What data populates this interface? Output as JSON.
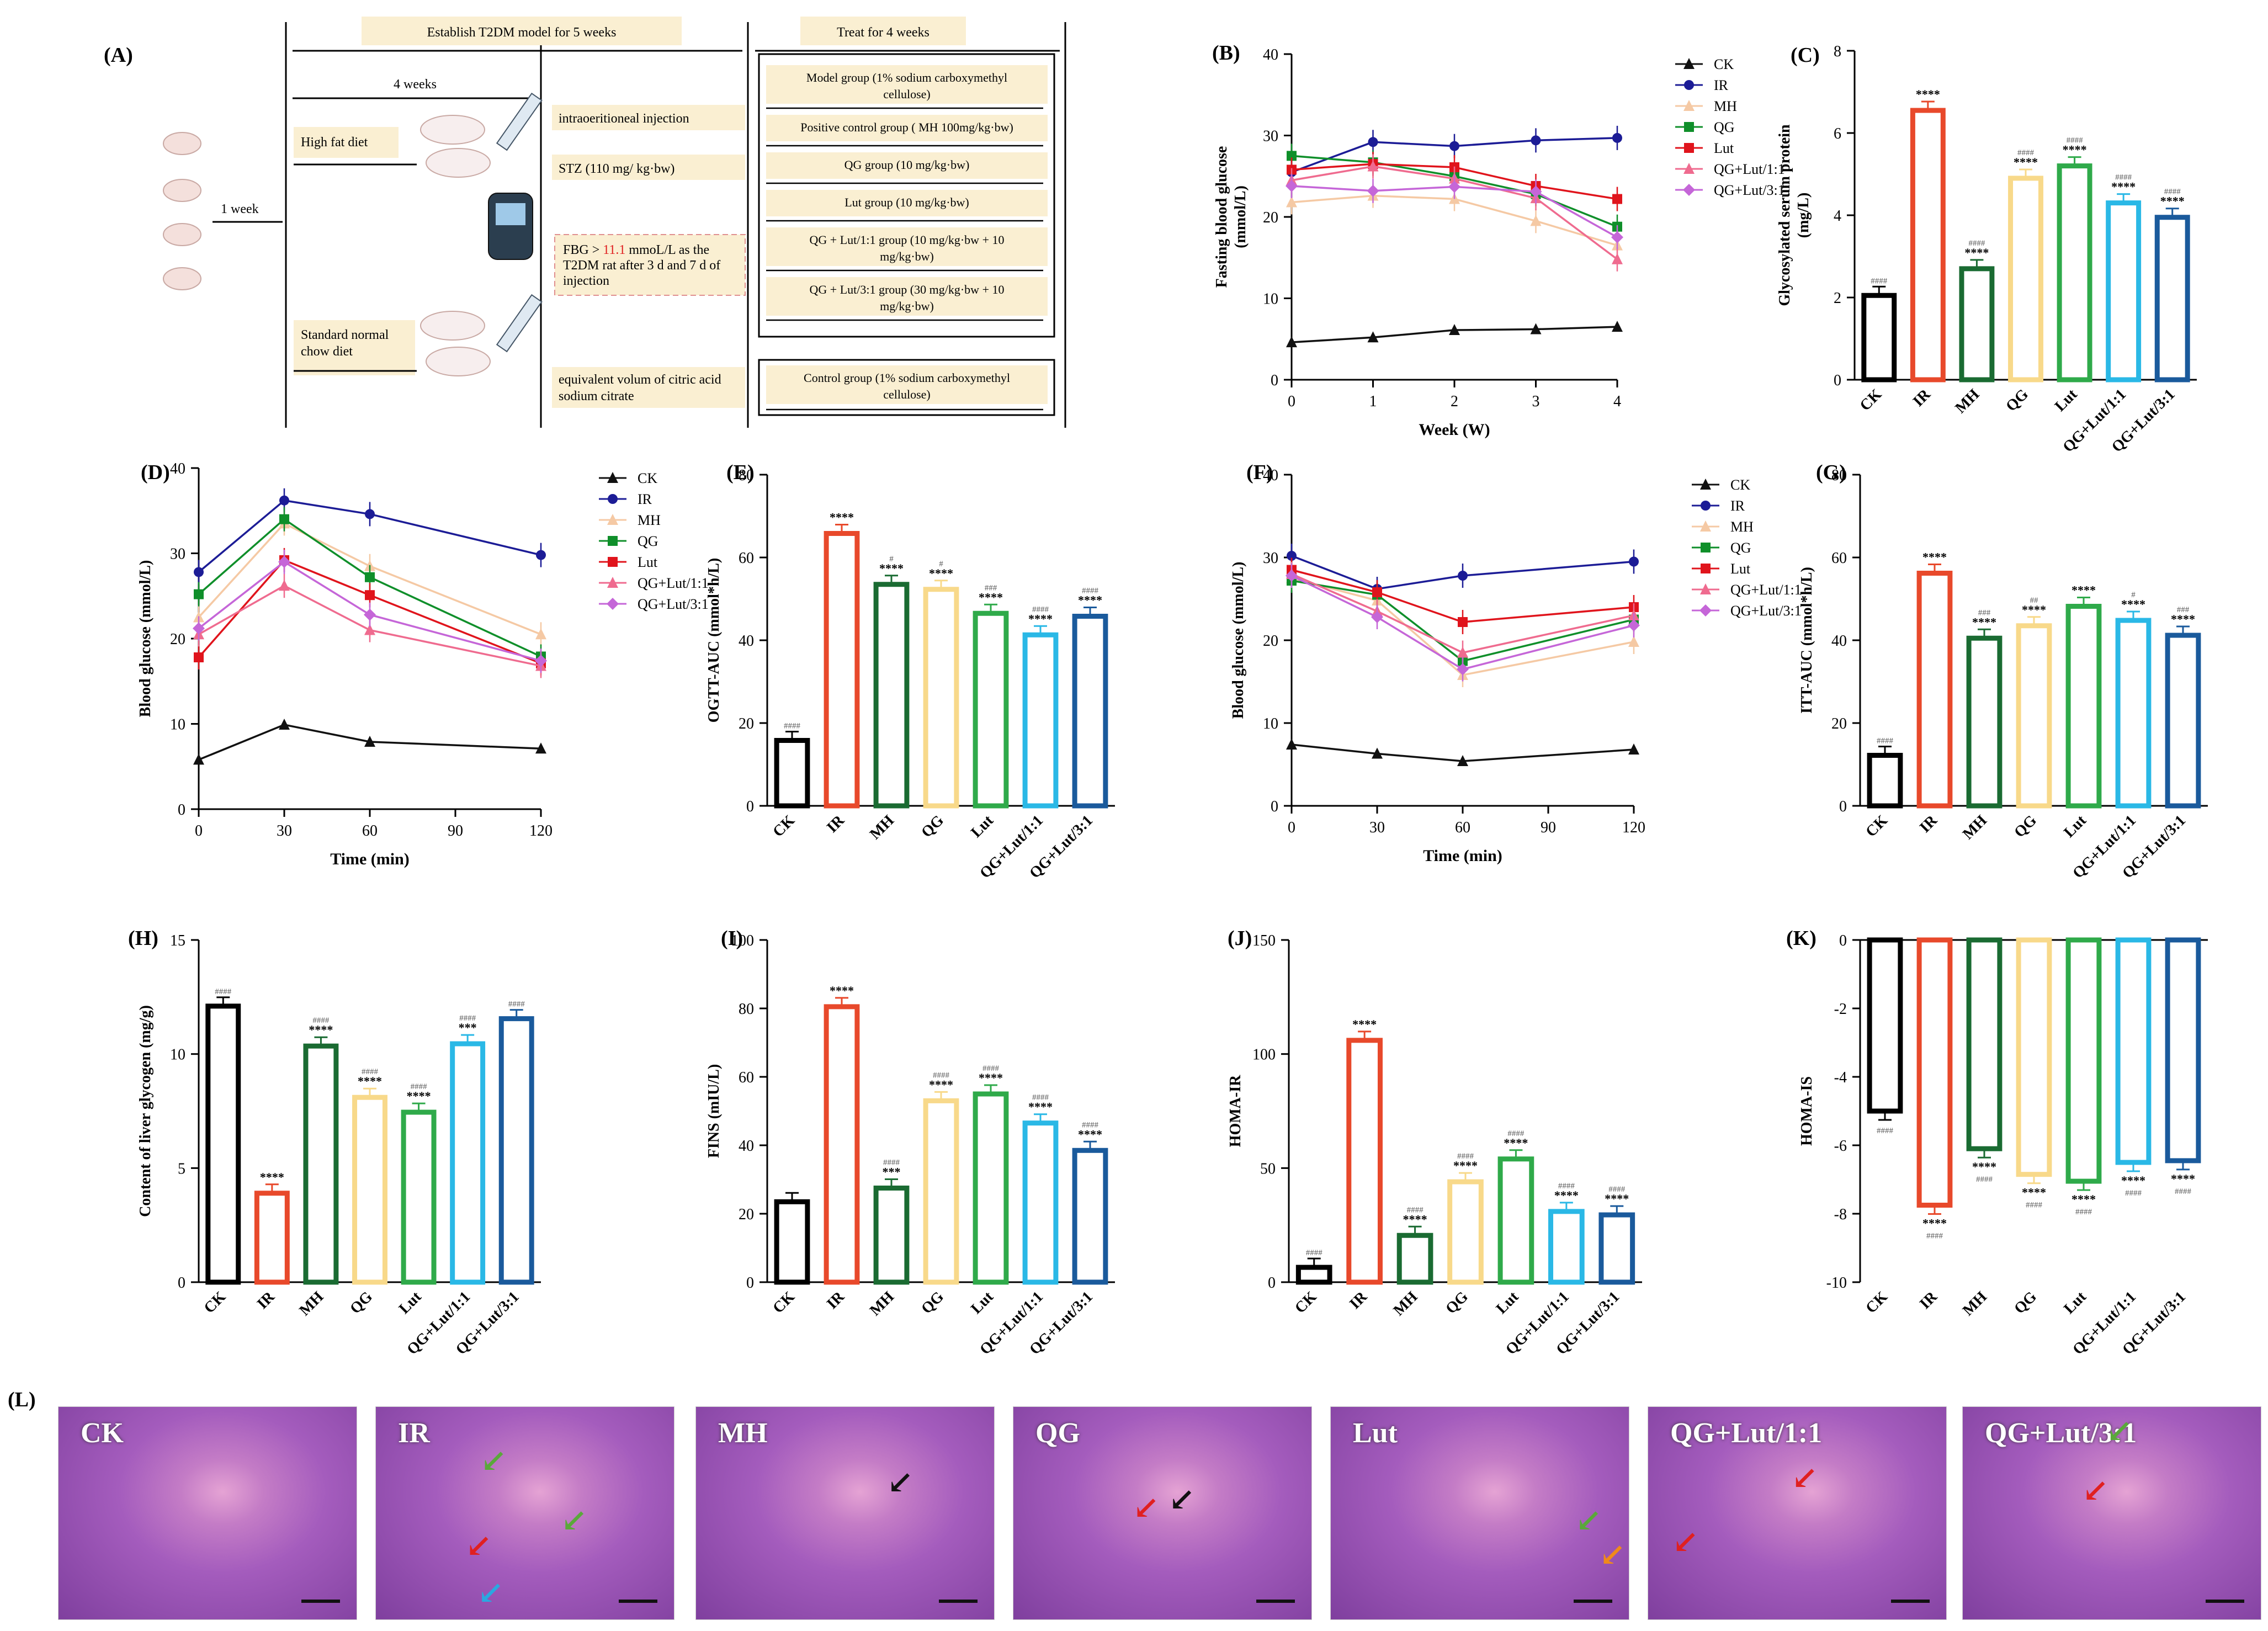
{
  "colors": {
    "CK": "#000000",
    "IR": "#e8492b",
    "MH": "#1a6b32",
    "QG": "#f8d98a",
    "Lut": "#2faa4a",
    "QGLut11": "#2ab8e6",
    "QGLut31": "#1a5a9c",
    "line_CK": "#111111",
    "line_IR": "#1c1c96",
    "line_MH": "#f5c9a4",
    "line_QG": "#0f8f2a",
    "line_Lut": "#e0141c",
    "line_QGLut11": "#ef6b8f",
    "line_QGLut31": "#c566d8",
    "box_fill": "#faefd2",
    "tissue": "#a45cbd"
  },
  "panel_labels": [
    "(A)",
    "(B)",
    "(C)",
    "(D)",
    "(E)",
    "(F)",
    "(G)",
    "(H)",
    "(I)",
    "(J)",
    "(K)",
    "(L)"
  ],
  "panelA": {
    "establish": "Establish T2DM model for 5 weeks",
    "treat": "Treat for 4 weeks",
    "four_weeks": "4 weeks",
    "one_week": "1 week",
    "high_fat": "High fat diet",
    "standard_1": "Standard normal",
    "standard_2": "chow diet",
    "ip": "intraoeritioneal injection",
    "stz": "STZ (110 mg/ kg·bw)",
    "fbg_pre": "FBG > ",
    "fbg_value": "11.1",
    "fbg_post": " mmoL/L as the",
    "fbg_2": "T2DM rat after 3 d and 7 d of",
    "fbg_3": "injection",
    "citrate_1": "equivalent volum of citric acid",
    "citrate_2": "sodium citrate",
    "groups": [
      [
        "Model group (1% sodium carboxymethyl",
        "cellulose)"
      ],
      [
        "Positive control group ( MH 100mg/kg·bw)"
      ],
      [
        "QG group (10 mg/kg·bw)"
      ],
      [
        "Lut group (10 mg/kg·bw)"
      ],
      [
        "QG + Lut/1:1 group (10 mg/kg·bw + 10",
        "mg/kg·bw)"
      ],
      [
        "QG + Lut/3:1 group (30 mg/kg·bw + 10",
        "mg/kg·bw)"
      ]
    ],
    "control": [
      "Control group (1% sodium carboxymethyl",
      "cellulose)"
    ]
  },
  "legend_names": [
    "CK",
    "IR",
    "MH",
    "QG",
    "Lut",
    "QG+Lut/1:1",
    "QG+Lut/3:1"
  ],
  "bar_categories": [
    "CK",
    "IR",
    "MH",
    "QG",
    "Lut",
    "QG+Lut/1:1",
    "QG+Lut/3:1"
  ],
  "chart_data": [
    {
      "id": "B",
      "type": "line",
      "title": "",
      "xlabel": "Week (W)",
      "ylabel": "Fasting blood glucose (mmol/L)",
      "ylabel_lines": [
        "Fasting blood glucose",
        "(mmol/L)"
      ],
      "x": [
        0,
        1,
        2,
        3,
        4
      ],
      "xticks": [
        "0",
        "1",
        "2",
        "3",
        "4"
      ],
      "ylim": [
        0,
        40
      ],
      "yticks": [
        0,
        10,
        20,
        30,
        40
      ],
      "series": [
        {
          "name": "CK",
          "values": [
            4.6,
            5.2,
            6.1,
            6.2,
            6.5
          ]
        },
        {
          "name": "IR",
          "values": [
            25.5,
            29.2,
            28.7,
            29.4,
            29.7
          ]
        },
        {
          "name": "MH",
          "values": [
            21.8,
            22.6,
            22.2,
            19.5,
            16.5
          ]
        },
        {
          "name": "QG",
          "values": [
            27.5,
            26.7,
            25.0,
            22.8,
            18.8
          ]
        },
        {
          "name": "Lut",
          "values": [
            25.8,
            26.5,
            26.1,
            23.8,
            22.2
          ]
        },
        {
          "name": "QG+Lut/1:1",
          "values": [
            24.5,
            26.2,
            24.7,
            22.3,
            14.8
          ]
        },
        {
          "name": "QG+Lut/3:1",
          "values": [
            23.8,
            23.2,
            23.7,
            23.1,
            17.5
          ]
        }
      ]
    },
    {
      "id": "C",
      "type": "bar",
      "ylabel": "Glycosylated serum protein (mg/L)",
      "ylabel_lines": [
        "Glycosylated serum protein",
        "(mg/L)"
      ],
      "ylim": [
        0,
        8
      ],
      "yticks": [
        0,
        2,
        4,
        6,
        8
      ],
      "values": [
        2.05,
        6.55,
        2.7,
        4.9,
        5.2,
        4.3,
        3.95
      ],
      "sig_top": [
        "####",
        "****",
        "####\n****",
        "####\n****",
        "####\n****",
        "####\n****",
        "####\n****"
      ],
      "sig_bottom": [
        "",
        "",
        "",
        "",
        "",
        "",
        ""
      ]
    },
    {
      "id": "D",
      "type": "line",
      "xlabel": "Time (min)",
      "ylabel": "Blood glucose (mmol/L)",
      "ylabel_lines": [
        "Blood glucose (mmol/L)"
      ],
      "x": [
        0,
        30,
        60,
        120
      ],
      "xticks": [
        "0",
        "30",
        "60",
        "90",
        "120"
      ],
      "xtick_values": [
        0,
        30,
        60,
        90,
        120
      ],
      "ylim": [
        0,
        40
      ],
      "yticks": [
        0,
        10,
        20,
        30,
        40
      ],
      "series": [
        {
          "name": "CK",
          "values": [
            5.8,
            9.9,
            7.9,
            7.1
          ]
        },
        {
          "name": "IR",
          "values": [
            27.8,
            36.2,
            34.6,
            29.8
          ]
        },
        {
          "name": "MH",
          "values": [
            22.5,
            33.5,
            28.5,
            20.5
          ]
        },
        {
          "name": "QG",
          "values": [
            25.2,
            34.0,
            27.2,
            17.9
          ]
        },
        {
          "name": "Lut",
          "values": [
            17.8,
            29.2,
            25.1,
            17.1
          ]
        },
        {
          "name": "QG+Lut/1:1",
          "values": [
            20.5,
            26.2,
            21.0,
            16.8
          ]
        },
        {
          "name": "QG+Lut/3:1",
          "values": [
            21.2,
            29.0,
            22.8,
            17.4
          ]
        }
      ]
    },
    {
      "id": "E",
      "type": "bar",
      "ylabel": "OGTT-AUC (mmol*h/L)",
      "ylabel_lines": [
        "OGTT-AUC (mmol*h/L)"
      ],
      "ylim": [
        0,
        80
      ],
      "yticks": [
        0,
        20,
        40,
        60,
        80
      ],
      "values": [
        15.8,
        65.8,
        53.5,
        52.3,
        46.5,
        41.3,
        45.8
      ],
      "sig_top": [
        "####",
        "****",
        "#\n****",
        "#\n****",
        "###\n****",
        "####\n****",
        "####\n****"
      ],
      "sig_bottom": [
        "",
        "",
        "",
        "",
        "",
        "",
        ""
      ]
    },
    {
      "id": "F",
      "type": "line",
      "xlabel": "Time (min)",
      "ylabel": "Blood glucose (mmol/L)",
      "ylabel_lines": [
        "Blood glucose (mmol/L)"
      ],
      "x": [
        0,
        30,
        60,
        120
      ],
      "xticks": [
        "0",
        "30",
        "60",
        "90",
        "120"
      ],
      "xtick_values": [
        0,
        30,
        60,
        90,
        120
      ],
      "ylim": [
        0,
        40
      ],
      "yticks": [
        0,
        10,
        20,
        30,
        40
      ],
      "series": [
        {
          "name": "CK",
          "values": [
            7.4,
            6.3,
            5.4,
            6.8
          ]
        },
        {
          "name": "IR",
          "values": [
            30.2,
            26.2,
            27.8,
            29.5
          ]
        },
        {
          "name": "MH",
          "values": [
            27.5,
            24.8,
            15.8,
            19.8
          ]
        },
        {
          "name": "QG",
          "values": [
            27.2,
            25.5,
            17.5,
            22.5
          ]
        },
        {
          "name": "Lut",
          "values": [
            28.5,
            25.8,
            22.2,
            24.0
          ]
        },
        {
          "name": "QG+Lut/1:1",
          "values": [
            28.0,
            23.5,
            18.5,
            23.0
          ]
        },
        {
          "name": "QG+Lut/3:1",
          "values": [
            27.8,
            22.8,
            16.5,
            21.8
          ]
        }
      ]
    },
    {
      "id": "G",
      "type": "bar",
      "ylabel": "ITT-AUC (mmol*h/L)",
      "ylabel_lines": [
        "ITT-AUC (mmol*h/L)"
      ],
      "ylim": [
        0,
        80
      ],
      "yticks": [
        0,
        20,
        40,
        60,
        80
      ],
      "values": [
        12.2,
        56.2,
        40.5,
        43.5,
        48.2,
        44.8,
        41.2
      ],
      "sig_top": [
        "####",
        "****",
        "###\n****",
        "##\n****",
        "****",
        "#\n****",
        "###\n****"
      ],
      "sig_bottom": [
        "",
        "",
        "",
        "",
        "",
        "",
        ""
      ]
    },
    {
      "id": "H",
      "type": "bar",
      "ylabel": "Content of liver glycogen (mg/g)",
      "ylabel_lines": [
        "Content of liver glycogen (mg/g)"
      ],
      "ylim": [
        0,
        15
      ],
      "yticks": [
        0,
        5,
        10,
        15
      ],
      "values": [
        12.1,
        3.9,
        10.35,
        8.1,
        7.45,
        10.45,
        11.55
      ],
      "sig_top": [
        "####",
        "****",
        "####\n****",
        "####\n****",
        "####\n****",
        "####\n***",
        "####"
      ],
      "sig_bottom": [
        "",
        "",
        "",
        "",
        "",
        "",
        ""
      ]
    },
    {
      "id": "I",
      "type": "bar",
      "ylabel": "FINS (mIU/L)",
      "ylabel_lines": [
        "FINS (mIU/L)"
      ],
      "ylim": [
        0,
        100
      ],
      "yticks": [
        0,
        20,
        40,
        60,
        80,
        100
      ],
      "values": [
        23.5,
        80.5,
        27.5,
        53.0,
        55.0,
        46.5,
        38.5
      ],
      "sig_top": [
        "",
        "****",
        "####\n***",
        "####\n****",
        "####\n****",
        "####\n****",
        "####\n****"
      ],
      "sig_bottom": [
        "",
        "",
        "",
        "",
        "",
        "",
        ""
      ]
    },
    {
      "id": "J",
      "type": "bar",
      "ylabel": "HOMA-IR",
      "ylabel_lines": [
        "HOMA-IR"
      ],
      "ylim": [
        0,
        150
      ],
      "yticks": [
        0,
        50,
        100,
        150
      ],
      "values": [
        6.5,
        106.0,
        20.5,
        44.0,
        54.0,
        31.0,
        29.5
      ],
      "sig_top": [
        "####",
        "****",
        "####\n****",
        "####\n****",
        "####\n****",
        "####\n****",
        "####\n****"
      ],
      "sig_bottom": [
        "",
        "",
        "",
        "",
        "",
        "",
        ""
      ]
    },
    {
      "id": "K",
      "type": "bar",
      "ylabel": "HOMA-IS",
      "ylabel_lines": [
        "HOMA-IS"
      ],
      "ylim": [
        -10,
        0
      ],
      "yticks": [
        -10,
        -8,
        -6,
        -4,
        -2,
        0
      ],
      "values": [
        -5.0,
        -7.75,
        -6.1,
        -6.85,
        -7.05,
        -6.5,
        -6.45
      ],
      "sig_top": [
        "",
        "",
        "",
        "",
        "",
        "",
        ""
      ],
      "sig_bottom": [
        "####",
        "****\n####",
        "****\n####",
        "****\n####",
        "****\n####",
        "****\n####",
        "****\n####"
      ]
    }
  ],
  "panelL": {
    "labels": [
      "CK",
      "IR",
      "MH",
      "QG",
      "Lut",
      "QG+Lut/1:1",
      "QG+Lut/3:1"
    ],
    "arrows": [
      [],
      [
        [
          "#5aa83a",
          35,
          18
        ],
        [
          "#5aa83a",
          62,
          46
        ],
        [
          "#e02020",
          30,
          58
        ],
        [
          "#2aa8e0",
          34,
          80
        ]
      ],
      [
        [
          "#111111",
          64,
          28
        ]
      ],
      [
        [
          "#e02020",
          40,
          40
        ],
        [
          "#111111",
          52,
          36
        ]
      ],
      [
        [
          "#5aa83a",
          82,
          46
        ],
        [
          "#f08a1a",
          90,
          62
        ]
      ],
      [
        [
          "#e02020",
          48,
          26
        ],
        [
          "#e02020",
          8,
          56
        ]
      ],
      [
        [
          "#5aa83a",
          48,
          4
        ],
        [
          "#e02020",
          40,
          32
        ]
      ]
    ]
  }
}
